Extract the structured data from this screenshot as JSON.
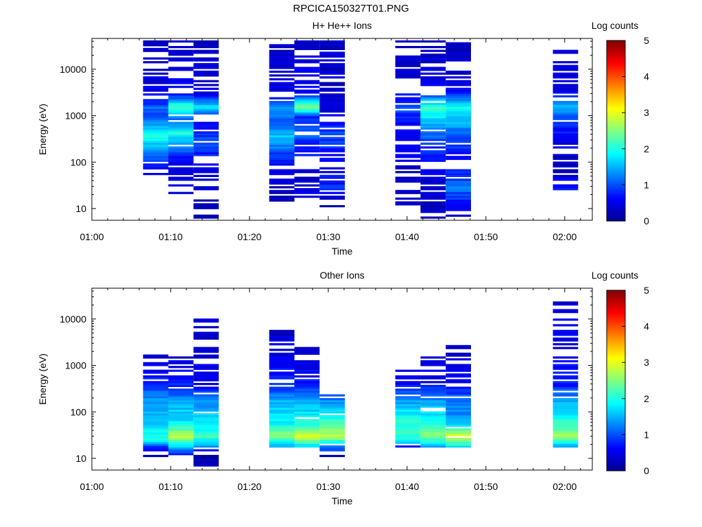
{
  "figure": {
    "title": "RPCICA150327T01.PNG"
  },
  "colormap": [
    "#00008f",
    "#0000ff",
    "#0080ff",
    "#00ffff",
    "#80ff80",
    "#ffff00",
    "#ff8000",
    "#ff0000",
    "#800000"
  ],
  "chart_data": [
    {
      "type": "heatmap",
      "title": "H+ He++ Ions",
      "xlabel": "Time",
      "ylabel": "Energy (eV)",
      "xticks": [
        "01:00",
        "01:10",
        "01:20",
        "01:30",
        "01:40",
        "01:50",
        "02:00"
      ],
      "xlim_minutes": [
        0,
        63.5
      ],
      "yscale": "log",
      "yticks": [
        "10",
        "100",
        "1000",
        "10000"
      ],
      "ylim": [
        5.6,
        46000
      ],
      "colorbar": {
        "label": "Log counts",
        "ticks": [
          "0",
          "1",
          "2",
          "3",
          "4",
          "5"
        ],
        "range": [
          0,
          5
        ]
      },
      "columns": [
        {
          "t_start_min": 6.5,
          "t_end_min": 9.7,
          "e_min": 55,
          "e_max": 40000,
          "profile": [
            [
              55,
              0.4
            ],
            [
              150,
              1.3
            ],
            [
              400,
              2.0
            ],
            [
              900,
              1.0
            ],
            [
              1500,
              1.1
            ],
            [
              3000,
              0.5
            ],
            [
              40000,
              0.3
            ]
          ]
        },
        {
          "t_start_min": 9.7,
          "t_end_min": 12.9,
          "e_min": 17,
          "e_max": 40000,
          "profile": [
            [
              17,
              0.6
            ],
            [
              90,
              0.3
            ],
            [
              200,
              1.2
            ],
            [
              450,
              2.0
            ],
            [
              800,
              1.0
            ],
            [
              1500,
              2.3
            ],
            [
              3000,
              0.6
            ],
            [
              40000,
              0.3
            ]
          ]
        },
        {
          "t_start_min": 12.9,
          "t_end_min": 16.1,
          "e_min": 6,
          "e_max": 40000,
          "profile": [
            [
              6,
              0.2
            ],
            [
              25,
              0.3
            ],
            [
              100,
              0.6
            ],
            [
              300,
              1.0
            ],
            [
              800,
              0.6
            ],
            [
              1500,
              1.8
            ],
            [
              3000,
              0.5
            ],
            [
              40000,
              0.3
            ]
          ]
        },
        {
          "t_start_min": 22.5,
          "t_end_min": 25.7,
          "e_min": 11,
          "e_max": 40000,
          "profile": [
            [
              11,
              0.2
            ],
            [
              30,
              0.3
            ],
            [
              100,
              0.6
            ],
            [
              350,
              1.6
            ],
            [
              800,
              0.9
            ],
            [
              1500,
              1.5
            ],
            [
              3000,
              0.5
            ],
            [
              40000,
              0.3
            ]
          ]
        },
        {
          "t_start_min": 25.7,
          "t_end_min": 28.9,
          "e_min": 17,
          "e_max": 40000,
          "profile": [
            [
              17,
              0.5
            ],
            [
              80,
              0.3
            ],
            [
              400,
              1.1
            ],
            [
              1000,
              0.8
            ],
            [
              1500,
              2.6
            ],
            [
              3000,
              0.6
            ],
            [
              40000,
              0.3
            ]
          ]
        },
        {
          "t_start_min": 28.9,
          "t_end_min": 32.1,
          "e_min": 11,
          "e_max": 40000,
          "profile": [
            [
              11,
              0.2
            ],
            [
              28,
              0.8
            ],
            [
              100,
              0.5
            ],
            [
              400,
              1.0
            ],
            [
              1000,
              0.5
            ],
            [
              3000,
              0.3
            ],
            [
              40000,
              0.3
            ]
          ]
        },
        {
          "t_start_min": 38.5,
          "t_end_min": 41.7,
          "e_min": 11,
          "e_max": 40000,
          "profile": [
            [
              11,
              0.2
            ],
            [
              40,
              0.3
            ],
            [
              200,
              0.5
            ],
            [
              800,
              0.7
            ],
            [
              1500,
              1.0
            ],
            [
              4000,
              0.4
            ],
            [
              40000,
              0.3
            ]
          ]
        },
        {
          "t_start_min": 41.7,
          "t_end_min": 44.9,
          "e_min": 6,
          "e_max": 40000,
          "profile": [
            [
              6,
              0.2
            ],
            [
              40,
              0.4
            ],
            [
              200,
              0.8
            ],
            [
              500,
              1.2
            ],
            [
              1500,
              2.2
            ],
            [
              4000,
              0.5
            ],
            [
              40000,
              0.3
            ]
          ]
        },
        {
          "t_start_min": 44.9,
          "t_end_min": 48.1,
          "e_min": 6,
          "e_max": 40000,
          "profile": [
            [
              6,
              0.2
            ],
            [
              30,
              1.2
            ],
            [
              100,
              0.5
            ],
            [
              300,
              1.0
            ],
            [
              1500,
              1.9
            ],
            [
              4000,
              0.5
            ],
            [
              40000,
              0.3
            ]
          ]
        },
        {
          "t_start_min": 58.5,
          "t_end_min": 61.7,
          "e_min": 22,
          "e_max": 32000,
          "profile": [
            [
              22,
              0.8
            ],
            [
              60,
              0.3
            ],
            [
              200,
              0.4
            ],
            [
              1000,
              1.0
            ],
            [
              1500,
              1.6
            ],
            [
              3000,
              0.5
            ],
            [
              32000,
              0.3
            ]
          ]
        }
      ]
    },
    {
      "type": "heatmap",
      "title": "Other Ions",
      "xlabel": "Time",
      "ylabel": "Energy (eV)",
      "xticks": [
        "01:00",
        "01:10",
        "01:20",
        "01:30",
        "01:40",
        "01:50",
        "02:00"
      ],
      "xlim_minutes": [
        0,
        63.5
      ],
      "yscale": "log",
      "yticks": [
        "10",
        "100",
        "1000",
        "10000"
      ],
      "ylim": [
        5.6,
        46000
      ],
      "colorbar": {
        "label": "Log counts",
        "ticks": [
          "0",
          "1",
          "2",
          "3",
          "4",
          "5"
        ],
        "range": [
          0,
          5
        ]
      },
      "columns": [
        {
          "t_start_min": 6.5,
          "t_end_min": 9.7,
          "e_min": 11,
          "e_max": 1700,
          "profile": [
            [
              11,
              0.2
            ],
            [
              18,
              0.8
            ],
            [
              25,
              2.2
            ],
            [
              60,
              1.6
            ],
            [
              150,
              1.5
            ],
            [
              400,
              0.8
            ],
            [
              1700,
              0.4
            ]
          ]
        },
        {
          "t_start_min": 9.7,
          "t_end_min": 12.9,
          "e_min": 11,
          "e_max": 1600,
          "profile": [
            [
              11,
              0.6
            ],
            [
              20,
              1.8
            ],
            [
              28,
              2.9
            ],
            [
              60,
              1.8
            ],
            [
              150,
              1.5
            ],
            [
              400,
              0.8
            ],
            [
              1600,
              0.4
            ]
          ]
        },
        {
          "t_start_min": 12.9,
          "t_end_min": 16.1,
          "e_min": 6,
          "e_max": 11500,
          "profile": [
            [
              6,
              0.2
            ],
            [
              12,
              0.2
            ],
            [
              18,
              1.3
            ],
            [
              30,
              2.2
            ],
            [
              80,
              1.6
            ],
            [
              200,
              1.2
            ],
            [
              400,
              0.6
            ],
            [
              11500,
              0.3
            ]
          ]
        },
        {
          "t_start_min": 22.5,
          "t_end_min": 25.7,
          "e_min": 17,
          "e_max": 6500,
          "profile": [
            [
              17,
              1.3
            ],
            [
              30,
              2.6
            ],
            [
              60,
              1.8
            ],
            [
              150,
              1.6
            ],
            [
              400,
              0.8
            ],
            [
              6500,
              0.3
            ]
          ]
        },
        {
          "t_start_min": 25.7,
          "t_end_min": 28.9,
          "e_min": 17,
          "e_max": 3000,
          "profile": [
            [
              17,
              1.5
            ],
            [
              30,
              2.9
            ],
            [
              60,
              2.0
            ],
            [
              150,
              1.5
            ],
            [
              400,
              0.7
            ],
            [
              3000,
              0.3
            ]
          ]
        },
        {
          "t_start_min": 28.9,
          "t_end_min": 32.1,
          "e_min": 11,
          "e_max": 230,
          "profile": [
            [
              11,
              0.2
            ],
            [
              18,
              1.3
            ],
            [
              30,
              2.8
            ],
            [
              60,
              2.2
            ],
            [
              130,
              1.6
            ],
            [
              230,
              1.0
            ]
          ]
        },
        {
          "t_start_min": 38.5,
          "t_end_min": 41.7,
          "e_min": 17,
          "e_max": 800,
          "profile": [
            [
              17,
              0.6
            ],
            [
              25,
              2.0
            ],
            [
              60,
              2.1
            ],
            [
              150,
              1.5
            ],
            [
              400,
              0.7
            ],
            [
              800,
              0.4
            ]
          ]
        },
        {
          "t_start_min": 41.7,
          "t_end_min": 44.9,
          "e_min": 17,
          "e_max": 1800,
          "profile": [
            [
              17,
              1.2
            ],
            [
              30,
              2.6
            ],
            [
              60,
              1.9
            ],
            [
              150,
              1.5
            ],
            [
              400,
              0.6
            ],
            [
              1800,
              0.3
            ]
          ]
        },
        {
          "t_start_min": 44.9,
          "t_end_min": 48.1,
          "e_min": 17,
          "e_max": 3000,
          "profile": [
            [
              17,
              1.6
            ],
            [
              30,
              3.0
            ],
            [
              60,
              1.4
            ],
            [
              150,
              1.3
            ],
            [
              400,
              0.6
            ],
            [
              3000,
              0.3
            ]
          ]
        },
        {
          "t_start_min": 58.5,
          "t_end_min": 61.7,
          "e_min": 17,
          "e_max": 32000,
          "profile": [
            [
              17,
              1.2
            ],
            [
              30,
              2.8
            ],
            [
              60,
              2.0
            ],
            [
              150,
              1.6
            ],
            [
              400,
              0.7
            ],
            [
              32000,
              0.3
            ]
          ]
        }
      ]
    }
  ]
}
